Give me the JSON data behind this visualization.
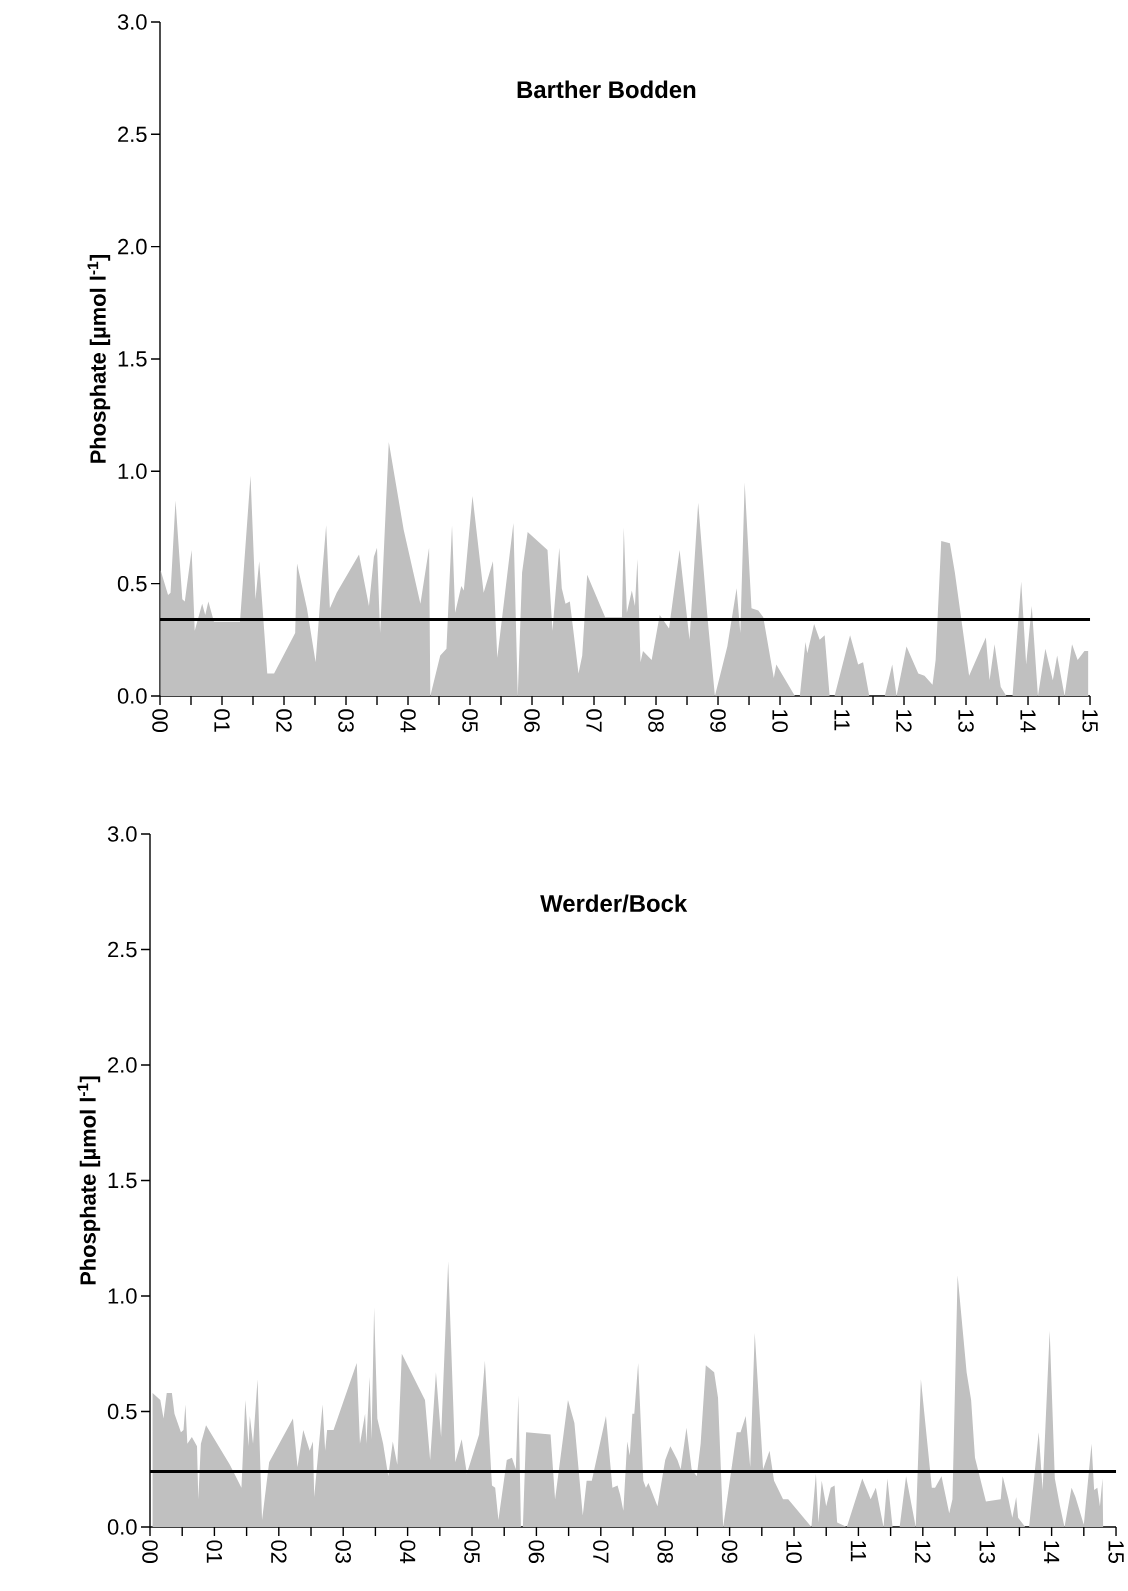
{
  "chart_data": [
    {
      "type": "area",
      "title": "Barther Bodden",
      "ylabel": "Phosphate [µmol l$^{-1}$]",
      "x": [
        0.01,
        0.13,
        0.17,
        0.25,
        0.36,
        0.4,
        0.51,
        0.56,
        0.68,
        0.73,
        0.78,
        0.87,
        1.29,
        1.46,
        1.54,
        1.6,
        1.73,
        1.84,
        2.18,
        2.21,
        2.37,
        2.51,
        2.62,
        2.68,
        2.74,
        2.85,
        3.21,
        3.37,
        3.45,
        3.5,
        3.55,
        3.69,
        3.93,
        4.2,
        4.34,
        4.36,
        4.52,
        4.62,
        4.71,
        4.76,
        4.86,
        4.9,
        5.04,
        5.22,
        5.37,
        5.44,
        5.7,
        5.77,
        5.84,
        5.93,
        6.25,
        6.33,
        6.44,
        6.48,
        6.54,
        6.61,
        6.75,
        6.81,
        6.89,
        7.18,
        7.45,
        7.48,
        7.53,
        7.61,
        7.66,
        7.7,
        7.75,
        7.79,
        7.93,
        8.06,
        8.21,
        8.38,
        8.54,
        8.68,
        8.83,
        8.95,
        9.15,
        9.3,
        9.36,
        9.43,
        9.54,
        9.65,
        9.73,
        9.9,
        9.94,
        10.24,
        10.32,
        10.41,
        10.44,
        10.55,
        10.64,
        10.72,
        10.8,
        10.88,
        11.13,
        11.26,
        11.34,
        11.44,
        11.69,
        11.81,
        11.88,
        12.04,
        12.23,
        12.33,
        12.46,
        12.51,
        12.6,
        12.74,
        12.82,
        13.05,
        13.32,
        13.38,
        13.46,
        13.56,
        13.65,
        13.75,
        13.89,
        13.97,
        14.06,
        14.16,
        14.28,
        14.4,
        14.47,
        14.59,
        14.71,
        14.8,
        14.91,
        14.97
      ],
      "values": [
        0.56,
        0.45,
        0.46,
        0.87,
        0.43,
        0.42,
        0.65,
        0.29,
        0.41,
        0.36,
        0.42,
        0.33,
        0.33,
        0.98,
        0.43,
        0.6,
        0.1,
        0.1,
        0.28,
        0.59,
        0.39,
        0.15,
        0.56,
        0.76,
        0.39,
        0.46,
        0.63,
        0.4,
        0.62,
        0.66,
        0.28,
        1.13,
        0.74,
        0.41,
        0.66,
        0.0,
        0.18,
        0.21,
        0.76,
        0.37,
        0.49,
        0.47,
        0.89,
        0.46,
        0.6,
        0.17,
        0.77,
        0.0,
        0.55,
        0.73,
        0.65,
        0.29,
        0.66,
        0.48,
        0.41,
        0.42,
        0.1,
        0.18,
        0.54,
        0.35,
        0.35,
        0.75,
        0.37,
        0.47,
        0.4,
        0.61,
        0.15,
        0.2,
        0.16,
        0.36,
        0.3,
        0.65,
        0.25,
        0.86,
        0.35,
        0.0,
        0.22,
        0.48,
        0.28,
        0.95,
        0.39,
        0.38,
        0.35,
        0.08,
        0.14,
        0.0,
        0.0,
        0.24,
        0.19,
        0.32,
        0.25,
        0.27,
        0.0,
        0.0,
        0.27,
        0.14,
        0.15,
        0.0,
        0.0,
        0.14,
        0.0,
        0.22,
        0.1,
        0.09,
        0.05,
        0.16,
        0.69,
        0.68,
        0.55,
        0.09,
        0.26,
        0.07,
        0.23,
        0.04,
        0.0,
        0.0,
        0.51,
        0.14,
        0.4,
        0.0,
        0.21,
        0.07,
        0.18,
        0.0,
        0.23,
        0.16,
        0.2,
        0.2
      ],
      "color": "#c0c0c0",
      "xlim": [
        0,
        15
      ],
      "ylim": [
        0,
        3
      ],
      "xticks": [
        {
          "value": 0,
          "label": "00"
        },
        {
          "value": 0.5,
          "label": null
        },
        {
          "value": 1,
          "label": "01"
        },
        {
          "value": 1.5,
          "label": null
        },
        {
          "value": 2,
          "label": "02"
        },
        {
          "value": 2.5,
          "label": null
        },
        {
          "value": 3,
          "label": "03"
        },
        {
          "value": 3.5,
          "label": null
        },
        {
          "value": 4,
          "label": "04"
        },
        {
          "value": 4.5,
          "label": null
        },
        {
          "value": 5,
          "label": "05"
        },
        {
          "value": 5.5,
          "label": null
        },
        {
          "value": 6,
          "label": "06"
        },
        {
          "value": 6.5,
          "label": null
        },
        {
          "value": 7,
          "label": "07"
        },
        {
          "value": 7.5,
          "label": null
        },
        {
          "value": 8,
          "label": "08"
        },
        {
          "value": 8.5,
          "label": null
        },
        {
          "value": 9,
          "label": "09"
        },
        {
          "value": 9.5,
          "label": null
        },
        {
          "value": 10,
          "label": "10"
        },
        {
          "value": 10.5,
          "label": null
        },
        {
          "value": 11,
          "label": "11"
        },
        {
          "value": 11.5,
          "label": null
        },
        {
          "value": 12,
          "label": "12"
        },
        {
          "value": 12.5,
          "label": null
        },
        {
          "value": 13,
          "label": "13"
        },
        {
          "value": 13.5,
          "label": null
        },
        {
          "value": 14,
          "label": "14"
        },
        {
          "value": 14.5,
          "label": null
        },
        {
          "value": 15,
          "label": "15"
        }
      ],
      "yticks": [
        {
          "value": 0,
          "label": "0.0"
        },
        {
          "value": 0.5,
          "label": "0.5"
        },
        {
          "value": 1,
          "label": "1.0"
        },
        {
          "value": 1.5,
          "label": "1.5"
        },
        {
          "value": 2,
          "label": "2.0"
        },
        {
          "value": 2.5,
          "label": "2.5"
        },
        {
          "value": 3,
          "label": "3.0"
        }
      ],
      "ref_lines": [
        {
          "axis": "y",
          "value": 0.34,
          "color": "#000000"
        }
      ]
    },
    {
      "type": "area",
      "title": "Werder/Bock",
      "ylabel": "Phosphate [µmol l$^{-1}$]",
      "x": [
        0.04,
        0.16,
        0.21,
        0.26,
        0.34,
        0.38,
        0.48,
        0.52,
        0.55,
        0.58,
        0.65,
        0.73,
        0.75,
        0.79,
        0.87,
        1.24,
        1.42,
        1.48,
        1.53,
        1.55,
        1.6,
        1.67,
        1.74,
        1.85,
        2.22,
        2.29,
        2.38,
        2.48,
        2.53,
        2.55,
        2.68,
        2.72,
        2.75,
        2.85,
        3.21,
        3.26,
        3.34,
        3.36,
        3.41,
        3.44,
        3.48,
        3.53,
        3.62,
        3.7,
        3.77,
        3.84,
        3.91,
        4.27,
        4.35,
        4.44,
        4.52,
        4.63,
        4.74,
        4.84,
        4.92,
        5.11,
        5.2,
        5.31,
        5.36,
        5.41,
        5.54,
        5.62,
        5.68,
        5.72,
        5.76,
        5.79,
        5.84,
        6.22,
        6.29,
        6.49,
        6.59,
        6.72,
        6.78,
        6.86,
        7.08,
        7.18,
        7.26,
        7.3,
        7.35,
        7.41,
        7.45,
        7.49,
        7.52,
        7.58,
        7.66,
        7.7,
        7.74,
        7.88,
        8.0,
        8.08,
        8.19,
        8.24,
        8.33,
        8.41,
        8.49,
        8.55,
        8.63,
        8.76,
        8.82,
        8.9,
        9.11,
        9.17,
        9.25,
        9.32,
        9.39,
        9.52,
        9.62,
        9.69,
        9.83,
        9.91,
        10.27,
        10.34,
        10.38,
        10.43,
        10.5,
        10.57,
        10.63,
        10.67,
        10.82,
        11.06,
        11.19,
        11.27,
        11.39,
        11.45,
        11.53,
        11.64,
        11.74,
        11.89,
        11.97,
        12.14,
        12.19,
        12.29,
        12.41,
        12.46,
        12.54,
        12.68,
        12.75,
        12.81,
        12.98,
        13.21,
        13.24,
        13.33,
        13.39,
        13.45,
        13.48,
        13.59,
        13.65,
        13.8,
        13.86,
        13.97,
        14.05,
        14.13,
        14.2,
        14.31,
        14.37,
        14.5,
        14.62,
        14.66,
        14.71,
        14.75,
        14.79,
        14.8
      ],
      "values": [
        0.58,
        0.55,
        0.47,
        0.58,
        0.58,
        0.49,
        0.41,
        0.42,
        0.53,
        0.36,
        0.39,
        0.35,
        0.12,
        0.36,
        0.44,
        0.27,
        0.17,
        0.55,
        0.35,
        0.48,
        0.36,
        0.64,
        0.03,
        0.28,
        0.47,
        0.26,
        0.42,
        0.33,
        0.37,
        0.13,
        0.53,
        0.33,
        0.42,
        0.42,
        0.71,
        0.36,
        0.49,
        0.36,
        0.65,
        0.38,
        0.95,
        0.47,
        0.36,
        0.22,
        0.37,
        0.27,
        0.75,
        0.55,
        0.29,
        0.67,
        0.39,
        1.15,
        0.28,
        0.38,
        0.23,
        0.4,
        0.72,
        0.18,
        0.17,
        0.03,
        0.29,
        0.3,
        0.25,
        0.57,
        0.0,
        0.0,
        0.41,
        0.4,
        0.12,
        0.55,
        0.45,
        0.05,
        0.2,
        0.2,
        0.48,
        0.17,
        0.18,
        0.14,
        0.07,
        0.37,
        0.31,
        0.49,
        0.49,
        0.71,
        0.2,
        0.17,
        0.19,
        0.09,
        0.29,
        0.35,
        0.29,
        0.25,
        0.43,
        0.25,
        0.22,
        0.36,
        0.7,
        0.67,
        0.56,
        0.0,
        0.41,
        0.41,
        0.48,
        0.26,
        0.84,
        0.25,
        0.33,
        0.2,
        0.12,
        0.12,
        0.0,
        0.23,
        0.02,
        0.2,
        0.09,
        0.17,
        0.18,
        0.02,
        0.0,
        0.21,
        0.12,
        0.17,
        0.0,
        0.21,
        0.0,
        0.0,
        0.22,
        0.0,
        0.64,
        0.17,
        0.17,
        0.22,
        0.06,
        0.12,
        1.09,
        0.67,
        0.55,
        0.3,
        0.11,
        0.12,
        0.22,
        0.12,
        0.04,
        0.13,
        0.04,
        0.0,
        0.0,
        0.41,
        0.16,
        0.85,
        0.21,
        0.09,
        0.0,
        0.17,
        0.13,
        0.01,
        0.36,
        0.16,
        0.17,
        0.09,
        0.21,
        0.0
      ],
      "color": "#c0c0c0",
      "xlim": [
        0,
        15
      ],
      "ylim": [
        0,
        3
      ],
      "xticks": [
        {
          "value": 0,
          "label": "00"
        },
        {
          "value": 0.5,
          "label": null
        },
        {
          "value": 1,
          "label": "01"
        },
        {
          "value": 1.5,
          "label": null
        },
        {
          "value": 2,
          "label": "02"
        },
        {
          "value": 2.5,
          "label": null
        },
        {
          "value": 3,
          "label": "03"
        },
        {
          "value": 3.5,
          "label": null
        },
        {
          "value": 4,
          "label": "04"
        },
        {
          "value": 4.5,
          "label": null
        },
        {
          "value": 5,
          "label": "05"
        },
        {
          "value": 5.5,
          "label": null
        },
        {
          "value": 6,
          "label": "06"
        },
        {
          "value": 6.5,
          "label": null
        },
        {
          "value": 7,
          "label": "07"
        },
        {
          "value": 7.5,
          "label": null
        },
        {
          "value": 8,
          "label": "08"
        },
        {
          "value": 8.5,
          "label": null
        },
        {
          "value": 9,
          "label": "09"
        },
        {
          "value": 9.5,
          "label": null
        },
        {
          "value": 10,
          "label": "10"
        },
        {
          "value": 10.5,
          "label": null
        },
        {
          "value": 11,
          "label": "11"
        },
        {
          "value": 11.5,
          "label": null
        },
        {
          "value": 12,
          "label": "12"
        },
        {
          "value": 12.5,
          "label": null
        },
        {
          "value": 13,
          "label": "13"
        },
        {
          "value": 13.5,
          "label": null
        },
        {
          "value": 14,
          "label": "14"
        },
        {
          "value": 14.5,
          "label": null
        },
        {
          "value": 15,
          "label": "15"
        }
      ],
      "yticks": [
        {
          "value": 0,
          "label": "0.0"
        },
        {
          "value": 0.5,
          "label": "0.5"
        },
        {
          "value": 1,
          "label": "1.0"
        },
        {
          "value": 1.5,
          "label": "1.5"
        },
        {
          "value": 2,
          "label": "2.0"
        },
        {
          "value": 2.5,
          "label": "2.5"
        },
        {
          "value": 3,
          "label": "3.0"
        }
      ],
      "ref_lines": [
        {
          "axis": "y",
          "value": 0.24,
          "color": "#000000"
        }
      ]
    }
  ]
}
